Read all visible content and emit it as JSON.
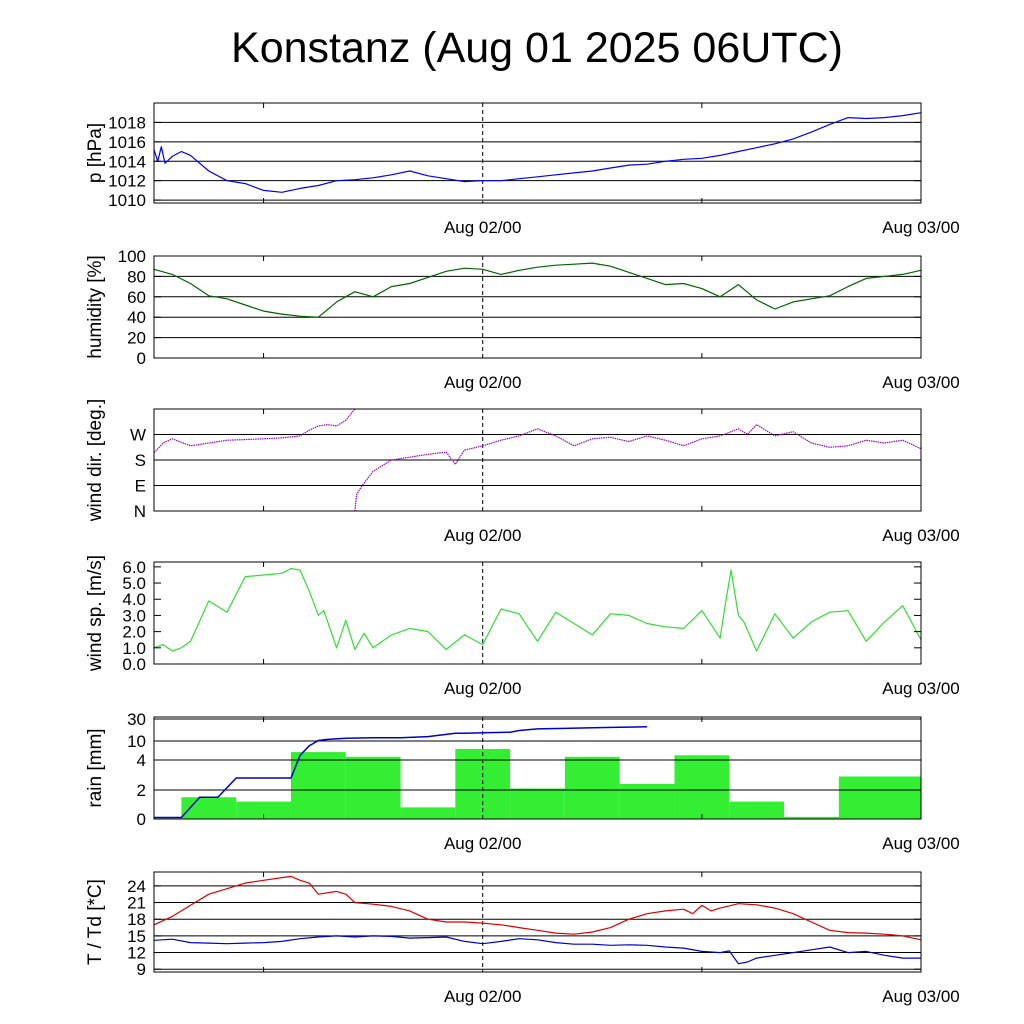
{
  "title": "Konstanz (Aug 01 2025 06UTC)",
  "chart_data": [
    {
      "id": "pressure",
      "type": "line",
      "ylabel": "p [hPa]",
      "ylim": [
        1009.7,
        1020
      ],
      "yticks": [
        1010,
        1012,
        1014,
        1016,
        1018
      ],
      "xtick_labels": [
        "Aug 02/00",
        "Aug 03/00"
      ],
      "x_unit": "hours since Aug 01 06UTC",
      "xlim": [
        0,
        42
      ],
      "grid": true,
      "series": [
        {
          "color": "#0000ff",
          "x": [
            0,
            0.2,
            0.4,
            0.6,
            1,
            1.5,
            2,
            3,
            4,
            5,
            6,
            7,
            8,
            9,
            10,
            11,
            12,
            13,
            14,
            15,
            16,
            17,
            18,
            19,
            20,
            21,
            22,
            23,
            24,
            25,
            26,
            27,
            28,
            29,
            30,
            31,
            32,
            33,
            34,
            35,
            36,
            37,
            38,
            39,
            40,
            41,
            42
          ],
          "values": [
            1015.2,
            1014.0,
            1015.5,
            1013.8,
            1014.5,
            1015.0,
            1014.6,
            1013.0,
            1012.0,
            1011.7,
            1011.0,
            1010.8,
            1011.2,
            1011.5,
            1012.0,
            1012.1,
            1012.3,
            1012.6,
            1013.0,
            1012.5,
            1012.2,
            1011.9,
            1012.0,
            1012.0,
            1012.2,
            1012.4,
            1012.6,
            1012.8,
            1013.0,
            1013.3,
            1013.6,
            1013.7,
            1014.0,
            1014.2,
            1014.3,
            1014.6,
            1015.0,
            1015.4,
            1015.8,
            1016.3,
            1017.0,
            1017.8,
            1018.5,
            1018.4,
            1018.5,
            1018.7,
            1019.0
          ]
        }
      ]
    },
    {
      "id": "humidity",
      "type": "line",
      "ylabel": "humidity [%]",
      "ylim": [
        0,
        100
      ],
      "yticks": [
        0,
        20,
        40,
        60,
        80,
        100
      ],
      "xtick_labels": [
        "Aug 02/00",
        "Aug 03/00"
      ],
      "xlim": [
        0,
        42
      ],
      "grid": true,
      "series": [
        {
          "color": "#006400",
          "x": [
            0,
            1,
            2,
            3,
            4,
            5,
            6,
            7,
            8,
            9,
            10,
            11,
            12,
            13,
            14,
            15,
            16,
            17,
            18,
            19,
            20,
            21,
            22,
            23,
            24,
            25,
            26,
            27,
            28,
            29,
            30,
            31,
            32,
            33,
            34,
            35,
            36,
            37,
            38,
            39,
            40,
            41,
            42
          ],
          "values": [
            87,
            82,
            73,
            61,
            58,
            52,
            46,
            43,
            41,
            40,
            55,
            65,
            60,
            70,
            73,
            79,
            85,
            88,
            87,
            82,
            86,
            89,
            91,
            92,
            93,
            90,
            84,
            78,
            72,
            73,
            68,
            60,
            72,
            57,
            48,
            55,
            58,
            61,
            70,
            78,
            80,
            82,
            86
          ]
        }
      ]
    },
    {
      "id": "wind-direction",
      "type": "scatter",
      "ylabel": "wind dir. [deg.]",
      "ylim": [
        0,
        360
      ],
      "yticks": [
        0,
        90,
        180,
        270
      ],
      "ytick_labels": [
        "N",
        "E",
        "S",
        "W"
      ],
      "xtick_labels": [
        "Aug 02/00",
        "Aug 03/00"
      ],
      "xlim": [
        0,
        42
      ],
      "grid": true,
      "series": [
        {
          "color": "#9900cc",
          "x": [
            0,
            0.5,
            1,
            2,
            3,
            4,
            5,
            6,
            7,
            8,
            8.5,
            9,
            9.5,
            10,
            10.5,
            11
          ],
          "values": [
            205,
            240,
            255,
            230,
            240,
            250,
            252,
            255,
            258,
            265,
            285,
            300,
            305,
            300,
            320,
            360
          ]
        },
        {
          "color": "#9900cc",
          "x": [
            11,
            11.1,
            11.4,
            12,
            13,
            14,
            15,
            16,
            16.5,
            17,
            18,
            19,
            20,
            21,
            22,
            23,
            24,
            25,
            26,
            27,
            28,
            29,
            30,
            31,
            32,
            32.5,
            33,
            34,
            35,
            36,
            37,
            38,
            39,
            40,
            41,
            42
          ],
          "values": [
            0,
            60,
            90,
            140,
            180,
            190,
            200,
            208,
            165,
            215,
            230,
            250,
            265,
            290,
            265,
            230,
            255,
            260,
            245,
            265,
            250,
            230,
            255,
            265,
            290,
            270,
            305,
            265,
            280,
            240,
            225,
            230,
            250,
            240,
            250,
            220
          ]
        }
      ]
    },
    {
      "id": "wind-speed",
      "type": "line",
      "ylabel": "wind sp. [m/s]",
      "ylim": [
        0,
        6.3
      ],
      "yticks": [
        0.0,
        1.0,
        2.0,
        3.0,
        4.0,
        5.0,
        6.0
      ],
      "ytick_labels": [
        "0.0",
        "1.0",
        "2.0",
        "3.0",
        "4.0",
        "5.0",
        "6.0"
      ],
      "xtick_labels": [
        "Aug 02/00",
        "Aug 03/00"
      ],
      "xlim": [
        0,
        42
      ],
      "grid": false,
      "series": [
        {
          "color": "#33dd33",
          "x": [
            0,
            0.5,
            1,
            1.5,
            2,
            3,
            4,
            5,
            6,
            7,
            7.5,
            8,
            8.5,
            9,
            9.3,
            10,
            10.5,
            11,
            11.5,
            12,
            13,
            14,
            15,
            16,
            17,
            18,
            19,
            20,
            21,
            22,
            23,
            24,
            25,
            26,
            27,
            28,
            29,
            30,
            31,
            31.3,
            31.6,
            32,
            32.3,
            33,
            34,
            35,
            36,
            37,
            38,
            39,
            40,
            41,
            42
          ],
          "values": [
            1.0,
            1.2,
            0.8,
            1.0,
            1.4,
            3.9,
            3.2,
            5.4,
            5.5,
            5.6,
            5.9,
            5.8,
            4.5,
            3.0,
            3.3,
            1.0,
            2.7,
            0.9,
            1.9,
            1.0,
            1.8,
            2.2,
            2.0,
            0.9,
            1.8,
            1.2,
            3.4,
            3.1,
            1.4,
            3.2,
            2.5,
            1.8,
            3.1,
            3.0,
            2.5,
            2.3,
            2.2,
            3.3,
            1.6,
            3.8,
            5.8,
            3.0,
            2.6,
            0.8,
            3.1,
            1.6,
            2.6,
            3.2,
            3.3,
            1.4,
            2.6,
            3.6,
            1.5
          ]
        }
      ]
    },
    {
      "id": "rain",
      "type": "bar",
      "ylabel": "rain [mm]",
      "yticks": [
        0,
        2,
        4,
        10,
        30
      ],
      "ytick_labels": [
        "0",
        "2",
        "4",
        "10",
        "30"
      ],
      "xtick_labels": [
        "Aug 02/00",
        "Aug 03/00"
      ],
      "xlim": [
        0,
        42
      ],
      "grid": true,
      "bar_color": "#33ee33",
      "bars": [
        {
          "x0": 1.5,
          "x1": 4.5,
          "value": 1.5
        },
        {
          "x0": 4.5,
          "x1": 7.5,
          "value": 1.2
        },
        {
          "x0": 7.5,
          "x1": 10.5,
          "value": 6.5
        },
        {
          "x0": 10.5,
          "x1": 13.5,
          "value": 5.0
        },
        {
          "x0": 13.5,
          "x1": 16.5,
          "value": 0.8
        },
        {
          "x0": 16.5,
          "x1": 19.5,
          "value": 7.5
        },
        {
          "x0": 19.5,
          "x1": 22.5,
          "value": 2.1
        },
        {
          "x0": 22.5,
          "x1": 25.5,
          "value": 5.0
        },
        {
          "x0": 25.5,
          "x1": 28.5,
          "value": 2.4
        },
        {
          "x0": 28.5,
          "x1": 31.5,
          "value": 5.5
        },
        {
          "x0": 31.5,
          "x1": 34.5,
          "value": 1.2
        },
        {
          "x0": 34.5,
          "x1": 37.5,
          "value": 0.15
        },
        {
          "x0": 37.5,
          "x1": 42,
          "value": 2.9
        }
      ],
      "accumulated": {
        "color": "#0000cc",
        "x": [
          0,
          1.5,
          2.5,
          3.5,
          4.5,
          5.5,
          6.5,
          7.5,
          8.0,
          8.5,
          9.0,
          9.5,
          10.5,
          12,
          13.5,
          15,
          16,
          16.5,
          17,
          18,
          19.5,
          20,
          21,
          22.5,
          24,
          25.5,
          27
        ],
        "values": [
          0.1,
          0.1,
          1.5,
          1.5,
          2.8,
          2.8,
          2.8,
          2.8,
          5.5,
          8.5,
          10.5,
          11.5,
          12.5,
          13,
          13,
          14,
          16,
          17,
          17,
          17.5,
          18,
          19.5,
          21,
          21.5,
          22,
          22.5,
          23
        ]
      }
    },
    {
      "id": "temperature",
      "type": "line",
      "ylabel": "T / Td [*C]",
      "ylim": [
        8.5,
        26.5
      ],
      "yticks": [
        9,
        12,
        15,
        18,
        21,
        24
      ],
      "xtick_labels": [
        "Aug 02/00",
        "Aug 03/00"
      ],
      "xlim": [
        0,
        42
      ],
      "grid": true,
      "series": [
        {
          "color": "#dd0000",
          "x": [
            0,
            1,
            2,
            3,
            4,
            5,
            6,
            7,
            7.5,
            8,
            8.5,
            9,
            10,
            10.5,
            11,
            12,
            13,
            14,
            15,
            16,
            17,
            18,
            19,
            20,
            21,
            22,
            23,
            24,
            25,
            26,
            27,
            28,
            29,
            29.5,
            30,
            30.5,
            31,
            32,
            33,
            34,
            35,
            36,
            37,
            38,
            39,
            40,
            41,
            42
          ],
          "values": [
            17.0,
            18.5,
            20.5,
            22.5,
            23.5,
            24.5,
            25.0,
            25.5,
            25.7,
            25.0,
            24.5,
            22.5,
            23.0,
            22.5,
            21.0,
            20.7,
            20.3,
            19.5,
            18.0,
            17.5,
            17.5,
            17.3,
            17.0,
            16.5,
            16.0,
            15.5,
            15.3,
            15.7,
            16.5,
            18.0,
            19.0,
            19.5,
            19.8,
            19.0,
            20.5,
            19.5,
            20.0,
            20.8,
            20.6,
            20.0,
            19.0,
            17.5,
            16.0,
            15.6,
            15.5,
            15.3,
            15.0,
            14.3
          ]
        },
        {
          "color": "#0000cc",
          "x": [
            0,
            1,
            2,
            3,
            4,
            5,
            6,
            7,
            8,
            9,
            10,
            11,
            12,
            13,
            14,
            15,
            16,
            17,
            18,
            19,
            20,
            21,
            22,
            23,
            24,
            25,
            26,
            27,
            28,
            29,
            30,
            31,
            31.5,
            32,
            32.5,
            33,
            34,
            35,
            36,
            37,
            38,
            39,
            40,
            41,
            42
          ],
          "values": [
            14.2,
            14.4,
            13.8,
            13.7,
            13.6,
            13.7,
            13.8,
            14.0,
            14.5,
            14.8,
            15.0,
            14.8,
            15.0,
            14.9,
            14.6,
            14.7,
            14.8,
            14.0,
            13.6,
            14.0,
            14.5,
            14.3,
            13.8,
            13.5,
            13.5,
            13.3,
            13.4,
            13.3,
            13.0,
            12.8,
            12.2,
            12.0,
            12.3,
            10.0,
            10.3,
            11.0,
            11.5,
            12.0,
            12.5,
            13.0,
            12.0,
            12.2,
            11.5,
            11.0,
            11.0
          ]
        }
      ]
    }
  ]
}
